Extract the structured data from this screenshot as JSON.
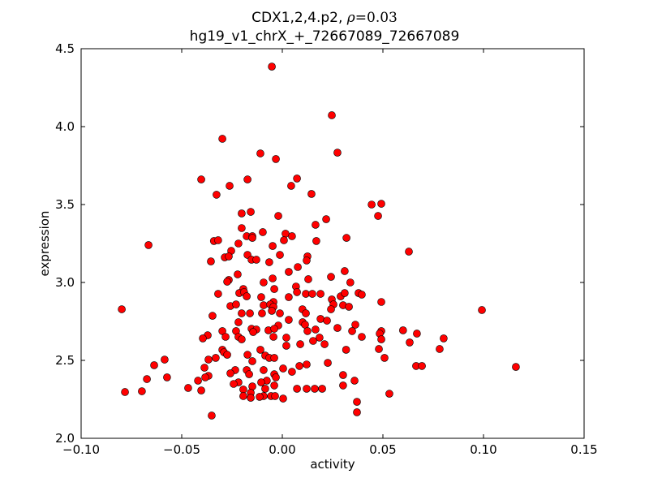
{
  "chart_data": {
    "type": "scatter",
    "title_line1_prefix": "CDX1,2,4.p2, ",
    "title_rho_symbol": "ρ",
    "title_rho_value": "=0.03",
    "title_line2": "hg19_v1_chrX_+_72667089_72667089",
    "xlabel": "activity",
    "ylabel": "expression",
    "xlim": [
      -0.1,
      0.15
    ],
    "ylim": [
      2.0,
      4.5
    ],
    "xticks": [
      "−0.10",
      "−0.05",
      "0.00",
      "0.05",
      "0.10",
      "0.15"
    ],
    "xtick_values": [
      -0.1,
      -0.05,
      0.0,
      0.05,
      0.1,
      0.15
    ],
    "yticks": [
      "2.0",
      "2.5",
      "3.0",
      "3.5",
      "4.0",
      "4.5"
    ],
    "ytick_values": [
      2.0,
      2.5,
      3.0,
      3.5,
      4.0,
      4.5
    ],
    "grid": false,
    "marker_color": "#ff0000",
    "marker_edge": "#000000",
    "points": [
      [
        -0.0052,
        4.385
      ],
      [
        0.0246,
        4.073
      ],
      [
        -0.0298,
        3.922
      ],
      [
        -0.0109,
        3.828
      ],
      [
        0.0274,
        3.833
      ],
      [
        -0.0032,
        3.792
      ],
      [
        -0.0403,
        3.661
      ],
      [
        -0.0173,
        3.661
      ],
      [
        0.0073,
        3.667
      ],
      [
        0.0044,
        3.62
      ],
      [
        -0.0262,
        3.62
      ],
      [
        -0.0327,
        3.563
      ],
      [
        0.0145,
        3.568
      ],
      [
        0.0444,
        3.5
      ],
      [
        0.0492,
        3.505
      ],
      [
        0.0476,
        3.427
      ],
      [
        -0.0202,
        3.443
      ],
      [
        -0.0157,
        3.453
      ],
      [
        -0.002,
        3.427
      ],
      [
        0.0218,
        3.406
      ],
      [
        0.0165,
        3.37
      ],
      [
        -0.0202,
        3.349
      ],
      [
        -0.0097,
        3.323
      ],
      [
        0.0016,
        3.313
      ],
      [
        -0.0177,
        3.297
      ],
      [
        -0.0149,
        3.297
      ],
      [
        -0.0149,
        3.286
      ],
      [
        0.0048,
        3.297
      ],
      [
        0.0319,
        3.286
      ],
      [
        0.0008,
        3.271
      ],
      [
        -0.034,
        3.266
      ],
      [
        -0.0319,
        3.271
      ],
      [
        -0.0218,
        3.25
      ],
      [
        0.0169,
        3.266
      ],
      [
        -0.0048,
        3.234
      ],
      [
        -0.0665,
        3.24
      ],
      [
        -0.0254,
        3.203
      ],
      [
        0.0629,
        3.198
      ],
      [
        -0.0012,
        3.177
      ],
      [
        -0.0173,
        3.177
      ],
      [
        -0.0286,
        3.161
      ],
      [
        -0.0266,
        3.167
      ],
      [
        0.0125,
        3.167
      ],
      [
        0.0121,
        3.141
      ],
      [
        -0.0153,
        3.146
      ],
      [
        -0.0129,
        3.146
      ],
      [
        -0.0355,
        3.135
      ],
      [
        -0.0065,
        3.13
      ],
      [
        0.0077,
        3.099
      ],
      [
        0.031,
        3.073
      ],
      [
        0.0032,
        3.068
      ],
      [
        0.0242,
        3.036
      ],
      [
        -0.0048,
        3.026
      ],
      [
        -0.0266,
        3.016
      ],
      [
        0.0129,
        3.021
      ],
      [
        -0.0222,
        3.052
      ],
      [
        -0.0093,
        3.0
      ],
      [
        0.0338,
        3.0
      ],
      [
        -0.0274,
        3.005
      ],
      [
        -0.004,
        2.958
      ],
      [
        0.0068,
        2.974
      ],
      [
        -0.0194,
        2.958
      ],
      [
        0.0073,
        2.938
      ],
      [
        -0.0319,
        2.927
      ],
      [
        -0.0214,
        2.932
      ],
      [
        -0.019,
        2.938
      ],
      [
        0.0117,
        2.927
      ],
      [
        0.0149,
        2.927
      ],
      [
        0.019,
        2.927
      ],
      [
        0.029,
        2.911
      ],
      [
        0.031,
        2.932
      ],
      [
        0.0379,
        2.932
      ],
      [
        0.0395,
        2.922
      ],
      [
        -0.0177,
        2.911
      ],
      [
        0.0032,
        2.906
      ],
      [
        -0.0105,
        2.906
      ],
      [
        -0.0044,
        2.875
      ],
      [
        0.0492,
        2.875
      ],
      [
        -0.0258,
        2.849
      ],
      [
        -0.0093,
        2.854
      ],
      [
        0.0246,
        2.891
      ],
      [
        0.0254,
        2.859
      ],
      [
        0.0302,
        2.854
      ],
      [
        0.0331,
        2.844
      ],
      [
        0.0242,
        2.828
      ],
      [
        -0.006,
        2.859
      ],
      [
        -0.0044,
        2.844
      ],
      [
        -0.0798,
        2.828
      ],
      [
        0.0992,
        2.823
      ],
      [
        0.01,
        2.828
      ],
      [
        0.0117,
        2.802
      ],
      [
        -0.023,
        2.859
      ],
      [
        -0.0202,
        2.802
      ],
      [
        -0.0161,
        2.802
      ],
      [
        -0.0101,
        2.802
      ],
      [
        -0.0052,
        2.818
      ],
      [
        -0.0012,
        2.802
      ],
      [
        -0.0347,
        2.786
      ],
      [
        0.0032,
        2.76
      ],
      [
        0.019,
        2.766
      ],
      [
        0.0222,
        2.755
      ],
      [
        0.0101,
        2.745
      ],
      [
        0.0113,
        2.729
      ],
      [
        0.0363,
        2.729
      ],
      [
        0.0274,
        2.708
      ],
      [
        -0.002,
        2.724
      ],
      [
        -0.0218,
        2.745
      ],
      [
        -0.0153,
        2.703
      ],
      [
        -0.0129,
        2.698
      ],
      [
        -0.0069,
        2.693
      ],
      [
        -0.004,
        2.703
      ],
      [
        0.0125,
        2.688
      ],
      [
        0.0165,
        2.698
      ],
      [
        0.0347,
        2.688
      ],
      [
        0.06,
        2.693
      ],
      [
        0.0492,
        2.688
      ],
      [
        0.0484,
        2.672
      ],
      [
        0.0669,
        2.672
      ],
      [
        -0.0298,
        2.688
      ],
      [
        -0.023,
        2.688
      ],
      [
        -0.0145,
        2.682
      ],
      [
        -0.0218,
        2.651
      ],
      [
        -0.0282,
        2.651
      ],
      [
        -0.0371,
        2.661
      ],
      [
        -0.0395,
        2.641
      ],
      [
        -0.0202,
        2.635
      ],
      [
        0.002,
        2.646
      ],
      [
        0.0185,
        2.646
      ],
      [
        0.0153,
        2.625
      ],
      [
        0.0395,
        2.651
      ],
      [
        0.0492,
        2.635
      ],
      [
        0.0802,
        2.641
      ],
      [
        0.0089,
        2.604
      ],
      [
        0.021,
        2.604
      ],
      [
        0.002,
        2.594
      ],
      [
        0.0633,
        2.615
      ],
      [
        -0.0044,
        2.651
      ],
      [
        0.0317,
        2.568
      ],
      [
        0.048,
        2.573
      ],
      [
        0.0782,
        2.573
      ],
      [
        -0.0298,
        2.568
      ],
      [
        -0.0109,
        2.568
      ],
      [
        -0.029,
        2.552
      ],
      [
        -0.0274,
        2.536
      ],
      [
        -0.0173,
        2.536
      ],
      [
        -0.0085,
        2.531
      ],
      [
        -0.0065,
        2.516
      ],
      [
        -0.004,
        2.516
      ],
      [
        -0.0331,
        2.516
      ],
      [
        -0.0367,
        2.505
      ],
      [
        -0.0585,
        2.505
      ],
      [
        -0.0149,
        2.495
      ],
      [
        0.0508,
        2.516
      ],
      [
        -0.0637,
        2.469
      ],
      [
        0.0226,
        2.484
      ],
      [
        0.0665,
        2.464
      ],
      [
        0.0694,
        2.464
      ],
      [
        0.1161,
        2.458
      ],
      [
        0.0121,
        2.474
      ],
      [
        0.0085,
        2.464
      ],
      [
        -0.0387,
        2.453
      ],
      [
        -0.0234,
        2.438
      ],
      [
        -0.0177,
        2.438
      ],
      [
        -0.0093,
        2.438
      ],
      [
        0.0004,
        2.448
      ],
      [
        0.0048,
        2.427
      ],
      [
        -0.0258,
        2.417
      ],
      [
        -0.0165,
        2.411
      ],
      [
        -0.004,
        2.411
      ],
      [
        -0.0032,
        2.391
      ],
      [
        -0.0573,
        2.391
      ],
      [
        -0.0367,
        2.401
      ],
      [
        -0.0383,
        2.391
      ],
      [
        -0.0673,
        2.38
      ],
      [
        0.0302,
        2.406
      ],
      [
        -0.0419,
        2.37
      ],
      [
        0.0359,
        2.37
      ],
      [
        -0.0077,
        2.37
      ],
      [
        -0.0105,
        2.359
      ],
      [
        -0.0218,
        2.359
      ],
      [
        -0.0242,
        2.349
      ],
      [
        -0.004,
        2.339
      ],
      [
        0.0302,
        2.339
      ],
      [
        -0.0149,
        2.333
      ],
      [
        -0.0468,
        2.323
      ],
      [
        -0.0085,
        2.318
      ],
      [
        0.0073,
        2.318
      ],
      [
        0.0121,
        2.318
      ],
      [
        0.0161,
        2.318
      ],
      [
        0.0198,
        2.318
      ],
      [
        -0.0194,
        2.313
      ],
      [
        -0.0403,
        2.307
      ],
      [
        -0.0698,
        2.302
      ],
      [
        -0.0782,
        2.297
      ],
      [
        0.0532,
        2.286
      ],
      [
        -0.0157,
        2.292
      ],
      [
        -0.0194,
        2.271
      ],
      [
        -0.0093,
        2.271
      ],
      [
        -0.0113,
        2.266
      ],
      [
        -0.0056,
        2.271
      ],
      [
        -0.0036,
        2.271
      ],
      [
        -0.0157,
        2.26
      ],
      [
        0.0004,
        2.255
      ],
      [
        0.0371,
        2.234
      ],
      [
        0.0371,
        2.167
      ],
      [
        -0.0351,
        2.146
      ]
    ]
  }
}
